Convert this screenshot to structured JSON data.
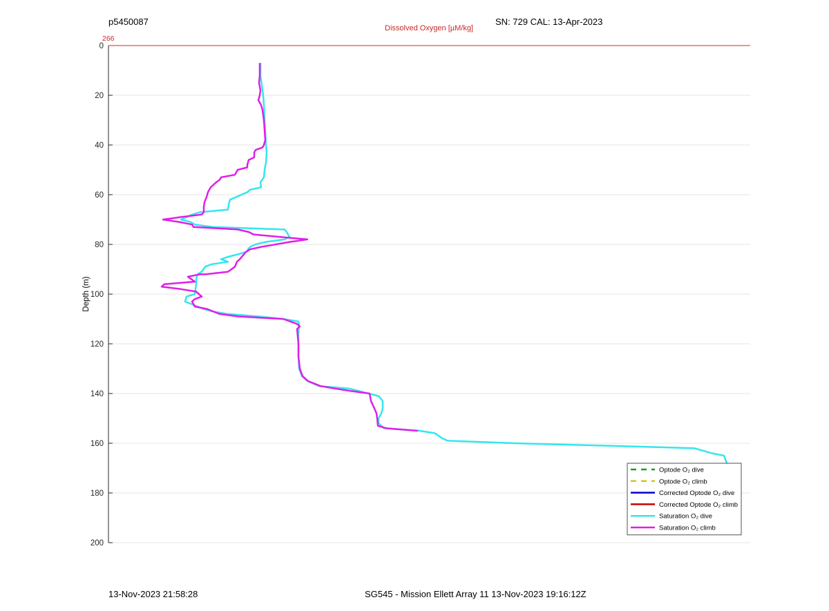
{
  "header": {
    "profile_id": "p5450087",
    "sensor_info": "SN: 729  CAL: 13-Apr-2023",
    "top_axis_label": "Dissolved Oxygen [µM/kg]",
    "top_axis_value": "266",
    "top_axis_color": "#d62728"
  },
  "footer": {
    "timestamp": "13-Nov-2023 21:58:28",
    "mission": "SG545 - Mission Ellett Array 11 13-Nov-2023 19:16:12Z"
  },
  "chart_data": {
    "type": "line",
    "ylabel": "Depth (m)",
    "ylim": [
      0,
      200
    ],
    "y_reversed": true,
    "yticks": [
      0,
      20,
      40,
      60,
      80,
      100,
      120,
      140,
      160,
      180,
      200
    ],
    "xlabel": "Dissolved Oxygen [µM/kg]",
    "xticks": [
      "266"
    ],
    "grid": true,
    "legend_position": "bottom-right",
    "series": [
      {
        "name": "Optode O₂ dive",
        "color": "#1a9e1a",
        "dash": true,
        "values": []
      },
      {
        "name": "Optode O₂ climb",
        "color": "#d9c21a",
        "dash": true,
        "values": []
      },
      {
        "name": "Corrected Optode O₂ dive",
        "color": "#0000c8",
        "dash": false,
        "values": []
      },
      {
        "name": "Corrected Optode O₂ climb",
        "color": "#c80000",
        "dash": false,
        "values": []
      },
      {
        "name": "Saturation O₂ dive",
        "color": "#33e6ee",
        "dash": false,
        "points": [
          [
            377,
            7
          ],
          [
            377,
            12
          ],
          [
            379,
            16
          ],
          [
            381,
            20
          ],
          [
            382,
            24
          ],
          [
            383,
            30
          ],
          [
            384,
            35
          ],
          [
            385,
            40
          ],
          [
            386,
            43
          ],
          [
            385,
            47
          ],
          [
            383,
            50
          ],
          [
            382,
            53
          ],
          [
            377,
            55
          ],
          [
            378,
            57
          ],
          [
            362,
            58
          ],
          [
            358,
            59
          ],
          [
            333,
            62
          ],
          [
            331,
            64
          ],
          [
            330,
            66
          ],
          [
            290,
            67
          ],
          [
            278,
            68
          ],
          [
            262,
            70
          ],
          [
            276,
            71
          ],
          [
            282,
            72
          ],
          [
            308,
            73
          ],
          [
            412,
            74
          ],
          [
            415,
            75
          ],
          [
            417,
            76
          ],
          [
            419,
            77
          ],
          [
            412,
            78
          ],
          [
            385,
            79
          ],
          [
            370,
            80
          ],
          [
            362,
            81
          ],
          [
            359,
            82
          ],
          [
            357,
            83
          ],
          [
            344,
            84
          ],
          [
            330,
            85
          ],
          [
            320,
            86
          ],
          [
            330,
            87
          ],
          [
            306,
            88
          ],
          [
            297,
            89
          ],
          [
            292,
            91
          ],
          [
            286,
            92
          ],
          [
            284,
            94
          ],
          [
            284,
            96
          ],
          [
            283,
            98
          ],
          [
            282,
            100
          ],
          [
            270,
            101
          ],
          [
            268,
            103
          ],
          [
            277,
            104
          ],
          [
            295,
            106
          ],
          [
            308,
            107
          ],
          [
            330,
            108
          ],
          [
            375,
            109
          ],
          [
            410,
            110
          ],
          [
            432,
            111
          ],
          [
            433,
            112
          ],
          [
            432,
            116
          ],
          [
            432,
            120
          ],
          [
            432,
            125
          ],
          [
            433,
            130
          ],
          [
            437,
            133
          ],
          [
            445,
            135
          ],
          [
            462,
            137
          ],
          [
            505,
            138
          ],
          [
            520,
            139
          ],
          [
            533,
            140
          ],
          [
            548,
            141
          ],
          [
            554,
            143
          ],
          [
            554,
            146
          ],
          [
            552,
            148
          ],
          [
            548,
            150
          ],
          [
            548,
            152
          ],
          [
            556,
            154
          ],
          [
            608,
            155
          ],
          [
            630,
            156
          ],
          [
            640,
            158
          ],
          [
            648,
            159
          ],
          [
            745,
            160
          ],
          [
            880,
            161
          ],
          [
            1005,
            162
          ],
          [
            1030,
            164
          ],
          [
            1048,
            165
          ],
          [
            1052,
            168
          ],
          [
            1056,
            170
          ]
        ]
      },
      {
        "name": "Saturation O₂ climb",
        "color": "#e01ee8",
        "dash": false,
        "points": [
          [
            376,
            7
          ],
          [
            376,
            12
          ],
          [
            375,
            15
          ],
          [
            377,
            18
          ],
          [
            376,
            20
          ],
          [
            374,
            22
          ],
          [
            378,
            24
          ],
          [
            380,
            26
          ],
          [
            382,
            30
          ],
          [
            383,
            34
          ],
          [
            384,
            38
          ],
          [
            382,
            40
          ],
          [
            380,
            41
          ],
          [
            370,
            42
          ],
          [
            368,
            43
          ],
          [
            368,
            45
          ],
          [
            360,
            46
          ],
          [
            358,
            48
          ],
          [
            358,
            49
          ],
          [
            344,
            50
          ],
          [
            340,
            52
          ],
          [
            320,
            53
          ],
          [
            318,
            54
          ],
          [
            313,
            55
          ],
          [
            305,
            57
          ],
          [
            301,
            59
          ],
          [
            299,
            61
          ],
          [
            296,
            63
          ],
          [
            295,
            65
          ],
          [
            295,
            67
          ],
          [
            292,
            68
          ],
          [
            262,
            69
          ],
          [
            236,
            70
          ],
          [
            260,
            71
          ],
          [
            278,
            72
          ],
          [
            280,
            73
          ],
          [
            344,
            74
          ],
          [
            360,
            75
          ],
          [
            367,
            76
          ],
          [
            406,
            77
          ],
          [
            445,
            78
          ],
          [
            420,
            79
          ],
          [
            378,
            81
          ],
          [
            362,
            82
          ],
          [
            356,
            83
          ],
          [
            353,
            84
          ],
          [
            347,
            86
          ],
          [
            343,
            87
          ],
          [
            340,
            89
          ],
          [
            330,
            91
          ],
          [
            298,
            92
          ],
          [
            290,
            92
          ],
          [
            272,
            93
          ],
          [
            282,
            95
          ],
          [
            238,
            96
          ],
          [
            234,
            97
          ],
          [
            262,
            98
          ],
          [
            284,
            99
          ],
          [
            292,
            101
          ],
          [
            282,
            102
          ],
          [
            278,
            103
          ],
          [
            282,
            105
          ],
          [
            300,
            106
          ],
          [
            318,
            108
          ],
          [
            345,
            109
          ],
          [
            410,
            110
          ],
          [
            420,
            111
          ],
          [
            430,
            112
          ],
          [
            434,
            113
          ],
          [
            430,
            114
          ],
          [
            431,
            117
          ],
          [
            432,
            120
          ],
          [
            432,
            125
          ],
          [
            434,
            130
          ],
          [
            438,
            133
          ],
          [
            446,
            135
          ],
          [
            464,
            137
          ],
          [
            485,
            138
          ],
          [
            508,
            139
          ],
          [
            535,
            140
          ],
          [
            537,
            143
          ],
          [
            542,
            146
          ],
          [
            545,
            148
          ],
          [
            546,
            150
          ],
          [
            547,
            153
          ],
          [
            560,
            154
          ],
          [
            605,
            155
          ]
        ]
      }
    ]
  }
}
